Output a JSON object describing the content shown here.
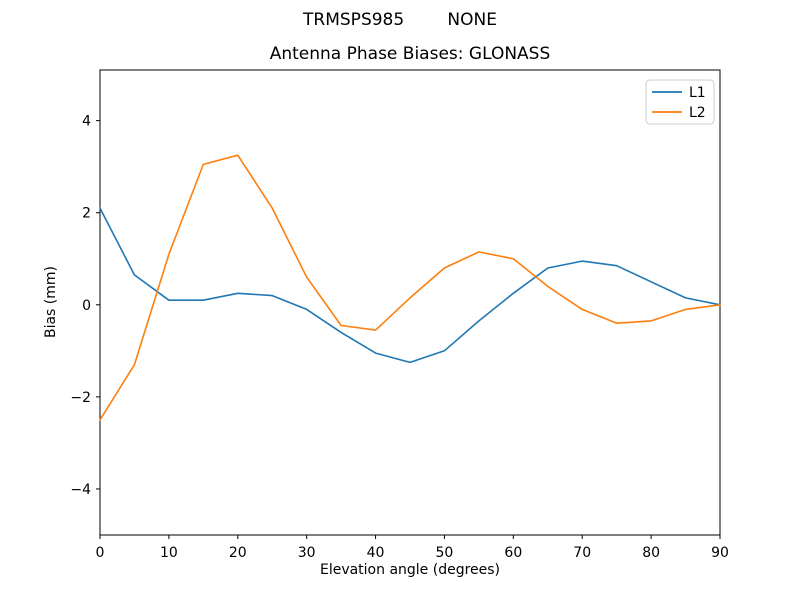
{
  "figure": {
    "suptitle": "TRMSPS985        NONE",
    "background": "#ffffff"
  },
  "chart_data": {
    "type": "line",
    "suptitle": "TRMSPS985        NONE",
    "title": "Antenna Phase Biases: GLONASS",
    "xlabel": "Elevation angle (degrees)",
    "ylabel": "Bias (mm)",
    "xlim": [
      0,
      90
    ],
    "ylim": [
      -5,
      5.1
    ],
    "xticks": [
      0,
      10,
      20,
      30,
      40,
      50,
      60,
      70,
      80,
      90
    ],
    "yticks": [
      -4,
      -2,
      0,
      2,
      4
    ],
    "grid": false,
    "legend_position": "upper right",
    "x": [
      0,
      5,
      10,
      15,
      20,
      25,
      30,
      35,
      40,
      45,
      50,
      55,
      60,
      65,
      70,
      75,
      80,
      85,
      90
    ],
    "series": [
      {
        "name": "L1",
        "color": "#1f77b4",
        "values": [
          2.1,
          0.65,
          0.1,
          0.1,
          0.25,
          0.2,
          -0.1,
          -0.6,
          -1.05,
          -1.25,
          -1.0,
          -0.35,
          0.25,
          0.8,
          0.95,
          0.85,
          0.5,
          0.15,
          0.0
        ]
      },
      {
        "name": "L2",
        "color": "#ff7f0e",
        "values": [
          -2.5,
          -1.3,
          1.1,
          3.05,
          3.25,
          2.1,
          0.6,
          -0.45,
          -0.55,
          0.15,
          0.8,
          1.15,
          1.0,
          0.4,
          -0.1,
          -0.4,
          -0.35,
          -0.1,
          0.0
        ]
      }
    ]
  },
  "colors": {
    "axis": "#000000",
    "legend_border": "#cccccc",
    "series_l1": "#1f77b4",
    "series_l2": "#ff7f0e"
  }
}
